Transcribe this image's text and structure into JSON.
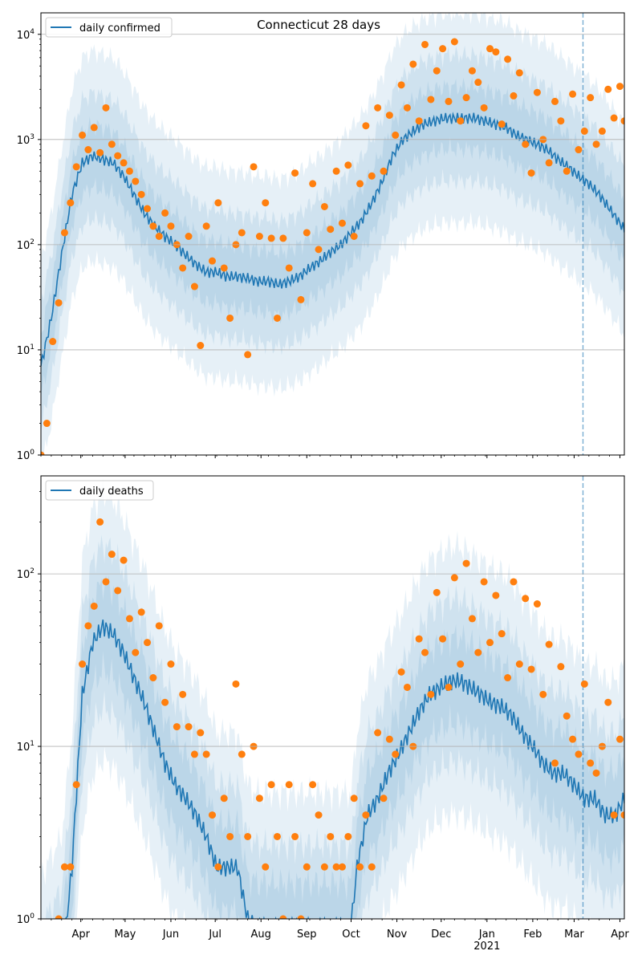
{
  "chart_data": [
    {
      "type": "line",
      "title": "Connecticut 28 days",
      "legend": {
        "label": "daily confirmed",
        "placement": "top-left"
      },
      "yscale": "log",
      "ylim": [
        1,
        16000
      ],
      "yticks": [
        {
          "value": 1,
          "base": "10",
          "exp": "0"
        },
        {
          "value": 10,
          "base": "10",
          "exp": "1"
        },
        {
          "value": 100,
          "base": "10",
          "exp": "2"
        },
        {
          "value": 1000,
          "base": "10",
          "exp": "3"
        },
        {
          "value": 10000,
          "base": "10",
          "exp": "4"
        }
      ],
      "x_unit": "days since 2020-03-05",
      "xlim": [
        0,
        395
      ],
      "forecast_start_day": 367,
      "bands": [
        {
          "level": "outer",
          "factor": 10
        },
        {
          "level": "middle",
          "factor": 4
        },
        {
          "level": "inner",
          "factor": 2
        }
      ],
      "median": [
        [
          0,
          7
        ],
        [
          7,
          20
        ],
        [
          14,
          80
        ],
        [
          21,
          300
        ],
        [
          28,
          600
        ],
        [
          35,
          700
        ],
        [
          42,
          650
        ],
        [
          49,
          600
        ],
        [
          56,
          450
        ],
        [
          63,
          300
        ],
        [
          70,
          200
        ],
        [
          77,
          150
        ],
        [
          84,
          120
        ],
        [
          91,
          100
        ],
        [
          98,
          80
        ],
        [
          105,
          65
        ],
        [
          112,
          55
        ],
        [
          119,
          55
        ],
        [
          126,
          50
        ],
        [
          133,
          50
        ],
        [
          140,
          48
        ],
        [
          147,
          45
        ],
        [
          154,
          45
        ],
        [
          161,
          42
        ],
        [
          168,
          45
        ],
        [
          175,
          50
        ],
        [
          182,
          60
        ],
        [
          189,
          70
        ],
        [
          196,
          85
        ],
        [
          203,
          100
        ],
        [
          210,
          130
        ],
        [
          217,
          170
        ],
        [
          224,
          250
        ],
        [
          231,
          400
        ],
        [
          238,
          700
        ],
        [
          245,
          1000
        ],
        [
          252,
          1200
        ],
        [
          259,
          1400
        ],
        [
          266,
          1500
        ],
        [
          273,
          1600
        ],
        [
          280,
          1600
        ],
        [
          287,
          1600
        ],
        [
          294,
          1600
        ],
        [
          301,
          1500
        ],
        [
          308,
          1400
        ],
        [
          315,
          1300
        ],
        [
          322,
          1100
        ],
        [
          329,
          1000
        ],
        [
          336,
          900
        ],
        [
          343,
          800
        ],
        [
          350,
          650
        ],
        [
          357,
          550
        ],
        [
          364,
          450
        ],
        [
          371,
          380
        ],
        [
          378,
          300
        ],
        [
          385,
          220
        ],
        [
          392,
          160
        ],
        [
          395,
          140
        ]
      ],
      "observed": [
        [
          0,
          1
        ],
        [
          4,
          2
        ],
        [
          8,
          12
        ],
        [
          12,
          28
        ],
        [
          16,
          130
        ],
        [
          20,
          250
        ],
        [
          24,
          550
        ],
        [
          28,
          1100
        ],
        [
          32,
          800
        ],
        [
          36,
          1300
        ],
        [
          40,
          750
        ],
        [
          44,
          2000
        ],
        [
          48,
          900
        ],
        [
          52,
          700
        ],
        [
          56,
          600
        ],
        [
          60,
          500
        ],
        [
          64,
          400
        ],
        [
          68,
          300
        ],
        [
          72,
          220
        ],
        [
          76,
          150
        ],
        [
          80,
          120
        ],
        [
          84,
          200
        ],
        [
          88,
          150
        ],
        [
          92,
          100
        ],
        [
          96,
          60
        ],
        [
          100,
          120
        ],
        [
          104,
          40
        ],
        [
          108,
          11
        ],
        [
          112,
          150
        ],
        [
          116,
          70
        ],
        [
          120,
          250
        ],
        [
          124,
          60
        ],
        [
          128,
          20
        ],
        [
          132,
          100
        ],
        [
          136,
          130
        ],
        [
          140,
          9
        ],
        [
          144,
          550
        ],
        [
          148,
          120
        ],
        [
          152,
          250
        ],
        [
          156,
          115
        ],
        [
          160,
          20
        ],
        [
          164,
          115
        ],
        [
          168,
          60
        ],
        [
          172,
          480
        ],
        [
          176,
          30
        ],
        [
          180,
          130
        ],
        [
          184,
          380
        ],
        [
          188,
          90
        ],
        [
          192,
          230
        ],
        [
          196,
          140
        ],
        [
          200,
          500
        ],
        [
          204,
          160
        ],
        [
          208,
          570
        ],
        [
          212,
          120
        ],
        [
          216,
          380
        ],
        [
          220,
          1350
        ],
        [
          224,
          450
        ],
        [
          228,
          2000
        ],
        [
          232,
          500
        ],
        [
          236,
          1700
        ],
        [
          240,
          1100
        ],
        [
          244,
          3300
        ],
        [
          248,
          2000
        ],
        [
          252,
          5200
        ],
        [
          256,
          1500
        ],
        [
          260,
          8000
        ],
        [
          264,
          2400
        ],
        [
          268,
          4500
        ],
        [
          272,
          7300
        ],
        [
          276,
          2300
        ],
        [
          280,
          8500
        ],
        [
          284,
          1500
        ],
        [
          288,
          2500
        ],
        [
          292,
          4500
        ],
        [
          296,
          3500
        ],
        [
          300,
          2000
        ],
        [
          304,
          7300
        ],
        [
          308,
          6800
        ],
        [
          312,
          1400
        ],
        [
          316,
          5800
        ],
        [
          320,
          2600
        ],
        [
          324,
          4300
        ],
        [
          328,
          900
        ],
        [
          332,
          480
        ],
        [
          336,
          2800
        ],
        [
          340,
          1000
        ],
        [
          344,
          600
        ],
        [
          348,
          2300
        ],
        [
          352,
          1500
        ],
        [
          356,
          500
        ],
        [
          360,
          2700
        ],
        [
          364,
          800
        ],
        [
          368,
          1200
        ],
        [
          372,
          2500
        ],
        [
          376,
          900
        ],
        [
          380,
          1200
        ],
        [
          384,
          3000
        ],
        [
          388,
          1600
        ],
        [
          392,
          3200
        ],
        [
          395,
          1500
        ]
      ]
    },
    {
      "type": "line",
      "title": "",
      "legend": {
        "label": "daily deaths",
        "placement": "top-left"
      },
      "yscale": "log",
      "ylim": [
        1,
        370
      ],
      "yticks": [
        {
          "value": 1,
          "base": "10",
          "exp": "0"
        },
        {
          "value": 10,
          "base": "10",
          "exp": "1"
        },
        {
          "value": 100,
          "base": "10",
          "exp": "2"
        }
      ],
      "x_unit": "days since 2020-03-05",
      "xlim": [
        0,
        395
      ],
      "forecast_start_day": 367,
      "bands": [
        {
          "level": "outer",
          "factor": 6
        },
        {
          "level": "middle",
          "factor": 3
        },
        {
          "level": "inner",
          "factor": 1.8
        }
      ],
      "median": [
        [
          0,
          0.3
        ],
        [
          14,
          0.5
        ],
        [
          21,
          2
        ],
        [
          28,
          20
        ],
        [
          35,
          40
        ],
        [
          42,
          50
        ],
        [
          49,
          45
        ],
        [
          56,
          35
        ],
        [
          63,
          25
        ],
        [
          70,
          18
        ],
        [
          77,
          12
        ],
        [
          84,
          8
        ],
        [
          91,
          6
        ],
        [
          98,
          5
        ],
        [
          105,
          4
        ],
        [
          112,
          3
        ],
        [
          119,
          2
        ],
        [
          126,
          2
        ],
        [
          133,
          2
        ],
        [
          140,
          1
        ],
        [
          147,
          0.9
        ],
        [
          210,
          0.9
        ],
        [
          214,
          2
        ],
        [
          221,
          4
        ],
        [
          228,
          5
        ],
        [
          235,
          7
        ],
        [
          242,
          9
        ],
        [
          249,
          12
        ],
        [
          256,
          16
        ],
        [
          263,
          20
        ],
        [
          270,
          22
        ],
        [
          277,
          24
        ],
        [
          284,
          24
        ],
        [
          291,
          22
        ],
        [
          298,
          20
        ],
        [
          305,
          18
        ],
        [
          312,
          17
        ],
        [
          319,
          15
        ],
        [
          326,
          12
        ],
        [
          333,
          10
        ],
        [
          340,
          8
        ],
        [
          347,
          7
        ],
        [
          354,
          7
        ],
        [
          361,
          6
        ],
        [
          368,
          5
        ],
        [
          375,
          5
        ],
        [
          382,
          4
        ],
        [
          389,
          4
        ],
        [
          395,
          5
        ]
      ],
      "observed": [
        [
          12,
          1
        ],
        [
          16,
          2
        ],
        [
          20,
          2
        ],
        [
          24,
          6
        ],
        [
          28,
          30
        ],
        [
          32,
          50
        ],
        [
          36,
          65
        ],
        [
          40,
          200
        ],
        [
          44,
          90
        ],
        [
          48,
          130
        ],
        [
          52,
          80
        ],
        [
          56,
          120
        ],
        [
          60,
          55
        ],
        [
          64,
          35
        ],
        [
          68,
          60
        ],
        [
          72,
          40
        ],
        [
          76,
          25
        ],
        [
          80,
          50
        ],
        [
          84,
          18
        ],
        [
          88,
          30
        ],
        [
          92,
          13
        ],
        [
          96,
          20
        ],
        [
          100,
          13
        ],
        [
          104,
          9
        ],
        [
          108,
          12
        ],
        [
          112,
          9
        ],
        [
          116,
          4
        ],
        [
          120,
          2
        ],
        [
          124,
          5
        ],
        [
          128,
          3
        ],
        [
          132,
          23
        ],
        [
          136,
          9
        ],
        [
          140,
          3
        ],
        [
          144,
          10
        ],
        [
          148,
          5
        ],
        [
          152,
          2
        ],
        [
          156,
          6
        ],
        [
          160,
          3
        ],
        [
          164,
          1
        ],
        [
          168,
          6
        ],
        [
          172,
          3
        ],
        [
          176,
          1
        ],
        [
          180,
          2
        ],
        [
          184,
          6
        ],
        [
          188,
          4
        ],
        [
          192,
          2
        ],
        [
          196,
          3
        ],
        [
          200,
          2
        ],
        [
          204,
          2
        ],
        [
          208,
          3
        ],
        [
          212,
          5
        ],
        [
          216,
          2
        ],
        [
          220,
          4
        ],
        [
          224,
          2
        ],
        [
          228,
          12
        ],
        [
          232,
          5
        ],
        [
          236,
          11
        ],
        [
          240,
          9
        ],
        [
          244,
          27
        ],
        [
          248,
          22
        ],
        [
          252,
          10
        ],
        [
          256,
          42
        ],
        [
          260,
          35
        ],
        [
          264,
          20
        ],
        [
          268,
          78
        ],
        [
          272,
          42
        ],
        [
          276,
          22
        ],
        [
          280,
          95
        ],
        [
          284,
          30
        ],
        [
          288,
          115
        ],
        [
          292,
          55
        ],
        [
          296,
          35
        ],
        [
          300,
          90
        ],
        [
          304,
          40
        ],
        [
          308,
          75
        ],
        [
          312,
          45
        ],
        [
          316,
          25
        ],
        [
          320,
          90
        ],
        [
          324,
          30
        ],
        [
          328,
          72
        ],
        [
          332,
          28
        ],
        [
          336,
          67
        ],
        [
          340,
          20
        ],
        [
          344,
          39
        ],
        [
          348,
          8
        ],
        [
          352,
          29
        ],
        [
          356,
          15
        ],
        [
          360,
          11
        ],
        [
          364,
          9
        ],
        [
          368,
          23
        ],
        [
          372,
          8
        ],
        [
          376,
          7
        ],
        [
          380,
          10
        ],
        [
          384,
          18
        ],
        [
          388,
          4
        ],
        [
          392,
          11
        ],
        [
          395,
          4
        ]
      ]
    }
  ],
  "xaxis": {
    "ticks": [
      {
        "day": 27,
        "label": "Apr"
      },
      {
        "day": 57,
        "label": "May"
      },
      {
        "day": 88,
        "label": "Jun"
      },
      {
        "day": 118,
        "label": "Jul"
      },
      {
        "day": 149,
        "label": "Aug"
      },
      {
        "day": 180,
        "label": "Sep"
      },
      {
        "day": 210,
        "label": "Oct"
      },
      {
        "day": 241,
        "label": "Nov"
      },
      {
        "day": 271,
        "label": "Dec"
      },
      {
        "day": 302,
        "label": "Jan"
      },
      {
        "day": 333,
        "label": "Feb"
      },
      {
        "day": 361,
        "label": "Mar"
      },
      {
        "day": 392,
        "label": "Apr"
      }
    ],
    "year_label": {
      "day": 302,
      "label": "2021"
    }
  },
  "colors": {
    "line": "#1f77b4",
    "points": "#ff7f0e",
    "band": "#1f77b4",
    "grid": "#b0b0b0"
  }
}
